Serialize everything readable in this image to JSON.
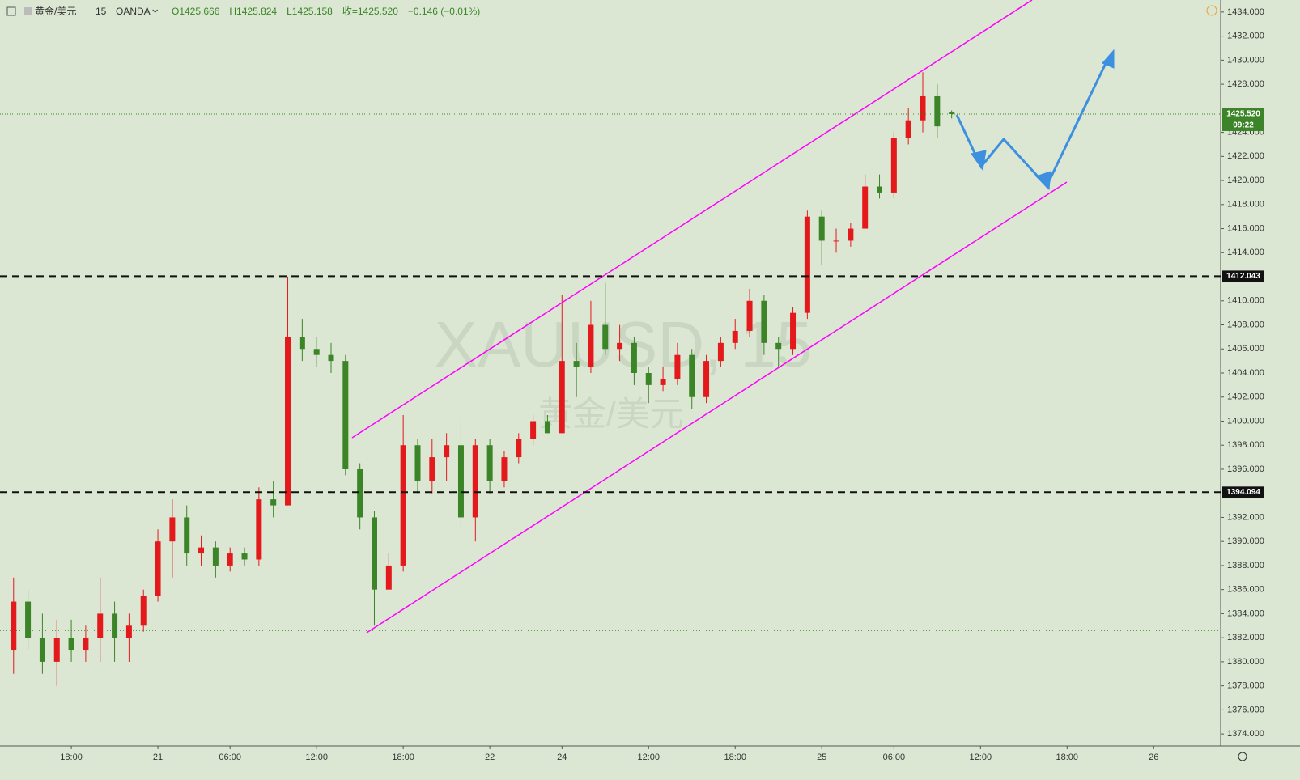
{
  "chart_data": {
    "type": "candlestick",
    "symbol": "黄金/美元",
    "interval": "15",
    "source": "OANDA",
    "ohlc_labels": [
      "O1425.666",
      "H1425.824",
      "L1425.158",
      "收=1425.520",
      "−0.146 (−0.01%)"
    ],
    "watermark": "XAUUSD, 15",
    "watermark_sub": "黄金/美元",
    "up_color": "#e3191c",
    "down_color": "#3b8427",
    "ylim": [
      1373,
      1435
    ],
    "xlim": [
      -0.94,
      83.64
    ],
    "open": [
      1381,
      1385,
      1382,
      1380,
      1382,
      1381,
      1382,
      1384,
      1382,
      1383,
      1385.5,
      1390,
      1392,
      1389,
      1389.5,
      1388,
      1389,
      1388.5,
      1393.5,
      1393,
      1407,
      1406,
      1405.5,
      1405,
      1396,
      1392,
      1386,
      1388,
      1398,
      1395,
      1397,
      1398,
      1392,
      1398,
      1395,
      1397,
      1398.5,
      1400,
      1399,
      1405,
      1404.5,
      1408,
      1406,
      1406.5,
      1404,
      1403,
      1403.5,
      1405.5,
      1402,
      1405,
      1406.5,
      1407.5,
      1410,
      1406.5,
      1406,
      1409,
      1417,
      1415,
      1415,
      1416,
      1419.5,
      1419,
      1423.5,
      1425,
      1427,
      1425.666
    ],
    "high": [
      1387,
      1386,
      1384,
      1383.5,
      1383.5,
      1383,
      1387,
      1385,
      1384,
      1386,
      1391,
      1393.5,
      1393,
      1390.5,
      1390,
      1389.5,
      1389.5,
      1394.5,
      1395,
      1412,
      1408.5,
      1407,
      1406.5,
      1405.5,
      1396.5,
      1392.5,
      1389,
      1400.5,
      1398.5,
      1398.5,
      1399,
      1400,
      1398.5,
      1398.5,
      1397.5,
      1399,
      1400.5,
      1400.5,
      1410.5,
      1406.5,
      1410,
      1411.5,
      1408,
      1407,
      1404.5,
      1404.5,
      1406.5,
      1406,
      1405.5,
      1407,
      1408.5,
      1411,
      1410.5,
      1407,
      1409.5,
      1417.5,
      1417.5,
      1416,
      1416.5,
      1420.5,
      1420.5,
      1424,
      1426,
      1429,
      1428,
      1425.824
    ],
    "low": [
      1379,
      1381,
      1379,
      1378,
      1380,
      1380,
      1380,
      1380,
      1380,
      1382.5,
      1385,
      1387,
      1388,
      1388,
      1387,
      1387.5,
      1388,
      1388,
      1392,
      1393,
      1405,
      1404.5,
      1404,
      1395.5,
      1391,
      1383,
      1386,
      1387.5,
      1394,
      1394,
      1395,
      1391,
      1390,
      1394,
      1394.5,
      1396.5,
      1398,
      1399,
      1399,
      1402,
      1404,
      1405.5,
      1405,
      1403,
      1401.5,
      1402.5,
      1403,
      1401,
      1401.5,
      1404.5,
      1406,
      1407,
      1405.5,
      1404.5,
      1405.5,
      1408.5,
      1413,
      1414,
      1414.5,
      1416,
      1418.5,
      1418.5,
      1423,
      1424,
      1423.5,
      1425.158
    ],
    "close": [
      1385,
      1382,
      1380,
      1382,
      1381,
      1382,
      1384,
      1382,
      1383,
      1385.5,
      1390,
      1392,
      1389,
      1389.5,
      1388,
      1389,
      1388.5,
      1393.5,
      1393,
      1407,
      1406,
      1405.5,
      1405,
      1396,
      1392,
      1386,
      1388,
      1398,
      1395,
      1397,
      1398,
      1392,
      1398,
      1395,
      1397,
      1398.5,
      1400,
      1399,
      1405,
      1404.5,
      1408,
      1406,
      1406.5,
      1404,
      1403,
      1403.5,
      1405.5,
      1402,
      1405,
      1406.5,
      1407.5,
      1410,
      1406.5,
      1406,
      1409,
      1417,
      1415,
      1415,
      1416,
      1419.5,
      1419,
      1423.5,
      1425,
      1427,
      1424.5,
      1425.52
    ],
    "yticks": [
      {
        "value": 1374,
        "label": "1374.000"
      },
      {
        "value": 1376,
        "label": "1376.000"
      },
      {
        "value": 1378,
        "label": "1378.000"
      },
      {
        "value": 1380,
        "label": "1380.000"
      },
      {
        "value": 1382,
        "label": "1382.000"
      },
      {
        "value": 1384,
        "label": "1384.000"
      },
      {
        "value": 1386,
        "label": "1386.000"
      },
      {
        "value": 1388,
        "label": "1388.000"
      },
      {
        "value": 1390,
        "label": "1390.000"
      },
      {
        "value": 1392,
        "label": "1392.000"
      },
      {
        "value": 1396,
        "label": "1396.000"
      },
      {
        "value": 1398,
        "label": "1398.000"
      },
      {
        "value": 1400,
        "label": "1400.000"
      },
      {
        "value": 1402,
        "label": "1402.000"
      },
      {
        "value": 1404,
        "label": "1404.000"
      },
      {
        "value": 1406,
        "label": "1406.000"
      },
      {
        "value": 1408,
        "label": "1408.000"
      },
      {
        "value": 1410,
        "label": "1410.000"
      },
      {
        "value": 1414,
        "label": "1414.000"
      },
      {
        "value": 1416,
        "label": "1416.000"
      },
      {
        "value": 1418,
        "label": "1418.000"
      },
      {
        "value": 1420,
        "label": "1420.000"
      },
      {
        "value": 1422,
        "label": "1422.000"
      },
      {
        "value": 1424,
        "label": "1424.000"
      },
      {
        "value": 1428,
        "label": "1428.000"
      },
      {
        "value": 1430,
        "label": "1430.000"
      },
      {
        "value": 1432,
        "label": "1432.000"
      },
      {
        "value": 1434,
        "label": "1434.000"
      }
    ],
    "xticks": [
      {
        "value": 4,
        "label": "18:00"
      },
      {
        "value": 10,
        "label": "21"
      },
      {
        "value": 15,
        "label": "06:00"
      },
      {
        "value": 21,
        "label": "12:00"
      },
      {
        "value": 27,
        "label": "18:00"
      },
      {
        "value": 33,
        "label": "22"
      },
      {
        "value": 38,
        "label": "24"
      },
      {
        "value": 44,
        "label": "12:00"
      },
      {
        "value": 50,
        "label": "18:00"
      },
      {
        "value": 56,
        "label": "25"
      },
      {
        "value": 61,
        "label": "06:00"
      },
      {
        "value": 67,
        "label": "12:00"
      },
      {
        "value": 73,
        "label": "18:00"
      },
      {
        "value": 79,
        "label": "26"
      }
    ],
    "levels": [
      1412.043,
      1394.094
    ],
    "dotted_levels": [
      1382.6
    ],
    "last_price": {
      "value": 1425.52,
      "label": "1425.520"
    },
    "last_price_color": "#3b8427",
    "countdown": "09:22"
  }
}
